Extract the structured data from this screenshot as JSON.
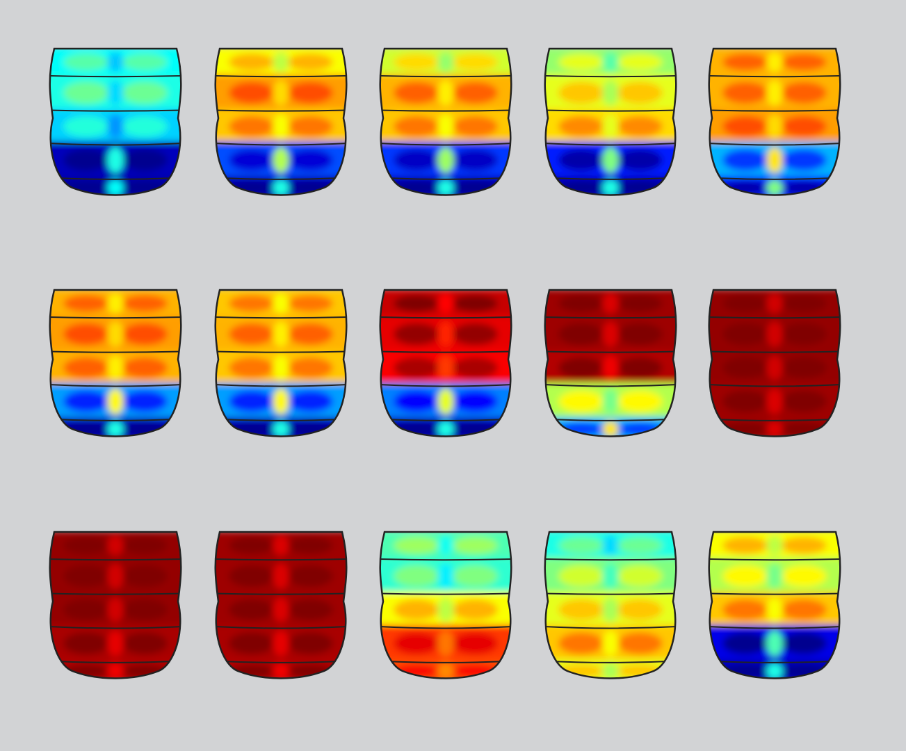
{
  "figure": {
    "background": "#d2d3d5",
    "outline_color": "#222222",
    "colormap": "jet",
    "colormap_stops": [
      "#00008f",
      "#0000ff",
      "#0080ff",
      "#00ffff",
      "#80ff80",
      "#ffff00",
      "#ff8000",
      "#ff0000",
      "#800000"
    ],
    "layout": {
      "rows": 3,
      "columns": 5
    },
    "panels": [
      {
        "row": 1,
        "col": 1,
        "level": "low",
        "band_levels": [
          0.38,
          0.4,
          0.33,
          0.05,
          0.03
        ]
      },
      {
        "row": 1,
        "col": 2,
        "level": "mid",
        "band_levels": [
          0.62,
          0.72,
          0.68,
          0.2,
          0.05
        ]
      },
      {
        "row": 1,
        "col": 3,
        "level": "mid",
        "band_levels": [
          0.58,
          0.7,
          0.68,
          0.18,
          0.05
        ]
      },
      {
        "row": 1,
        "col": 4,
        "level": "mid",
        "band_levels": [
          0.52,
          0.6,
          0.66,
          0.15,
          0.05
        ]
      },
      {
        "row": 1,
        "col": 5,
        "level": "mid",
        "band_levels": [
          0.7,
          0.7,
          0.72,
          0.3,
          0.15
        ]
      },
      {
        "row": 2,
        "col": 1,
        "level": "high",
        "band_levels": [
          0.7,
          0.72,
          0.7,
          0.28,
          0.05
        ]
      },
      {
        "row": 2,
        "col": 2,
        "level": "high",
        "band_levels": [
          0.68,
          0.7,
          0.68,
          0.28,
          0.05
        ]
      },
      {
        "row": 2,
        "col": 3,
        "level": "high",
        "band_levels": [
          0.93,
          0.9,
          0.88,
          0.25,
          0.05
        ]
      },
      {
        "row": 2,
        "col": 4,
        "level": "max",
        "band_levels": [
          0.97,
          0.97,
          0.95,
          0.55,
          0.3
        ]
      },
      {
        "row": 2,
        "col": 5,
        "level": "max",
        "band_levels": [
          0.98,
          0.98,
          0.98,
          0.97,
          0.97
        ]
      },
      {
        "row": 3,
        "col": 1,
        "level": "max",
        "band_levels": [
          0.98,
          0.98,
          0.98,
          0.96,
          0.95
        ]
      },
      {
        "row": 3,
        "col": 2,
        "level": "max",
        "band_levels": [
          0.97,
          0.97,
          0.97,
          0.96,
          0.95
        ]
      },
      {
        "row": 3,
        "col": 3,
        "level": "mid",
        "band_levels": [
          0.45,
          0.42,
          0.62,
          0.82,
          0.8
        ]
      },
      {
        "row": 3,
        "col": 4,
        "level": "mid",
        "band_levels": [
          0.4,
          0.5,
          0.6,
          0.68,
          0.6
        ]
      },
      {
        "row": 3,
        "col": 5,
        "level": "mid",
        "band_levels": [
          0.62,
          0.55,
          0.68,
          0.1,
          0.05
        ]
      }
    ]
  }
}
